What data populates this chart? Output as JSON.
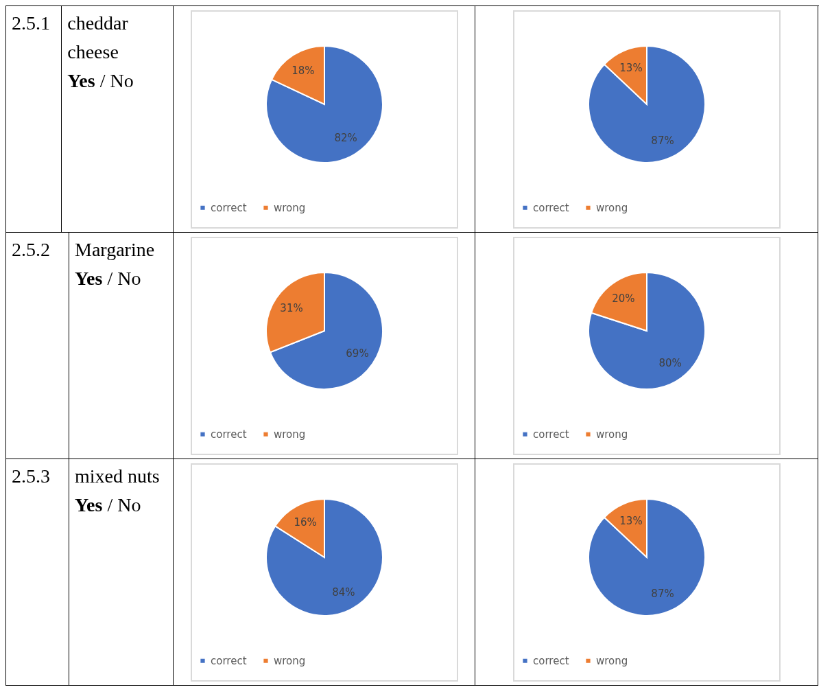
{
  "chart_data": [
    {
      "type": "other",
      "title": "2.5.1",
      "annotations": [
        "cheddar cheese",
        "Yes / No"
      ]
    },
    {
      "type": "pie",
      "categories": [
        "correct",
        "wrong"
      ],
      "values": [
        82,
        18
      ],
      "colors": [
        "#4472c4",
        "#ed7d31"
      ],
      "value_labels": [
        "82%",
        "18%"
      ],
      "legend": "bottom"
    },
    {
      "type": "pie",
      "categories": [
        "correct",
        "wrong"
      ],
      "values": [
        87,
        13
      ],
      "colors": [
        "#4472c4",
        "#ed7d31"
      ],
      "value_labels": [
        "87%",
        "13%"
      ],
      "legend": "bottom"
    },
    {
      "type": "other",
      "title": "2.5.2",
      "annotations": [
        "Margarine",
        "Yes / No"
      ]
    },
    {
      "type": "pie",
      "categories": [
        "correct",
        "wrong"
      ],
      "values": [
        69,
        31
      ],
      "colors": [
        "#4472c4",
        "#ed7d31"
      ],
      "value_labels": [
        "69%",
        "31%"
      ],
      "legend": "bottom"
    },
    {
      "type": "pie",
      "categories": [
        "correct",
        "wrong"
      ],
      "values": [
        80,
        20
      ],
      "colors": [
        "#4472c4",
        "#ed7d31"
      ],
      "value_labels": [
        "80%",
        "20%"
      ],
      "legend": "bottom"
    },
    {
      "type": "other",
      "title": "2.5.3",
      "annotations": [
        "mixed nuts",
        "Yes / No"
      ]
    },
    {
      "type": "pie",
      "categories": [
        "correct",
        "wrong"
      ],
      "values": [
        84,
        16
      ],
      "colors": [
        "#4472c4",
        "#ed7d31"
      ],
      "value_labels": [
        "84%",
        "16%"
      ],
      "legend": "bottom"
    },
    {
      "type": "pie",
      "categories": [
        "correct",
        "wrong"
      ],
      "values": [
        87,
        13
      ],
      "colors": [
        "#4472c4",
        "#ed7d31"
      ],
      "value_labels": [
        "87%",
        "13%"
      ],
      "legend": "bottom"
    }
  ]
}
